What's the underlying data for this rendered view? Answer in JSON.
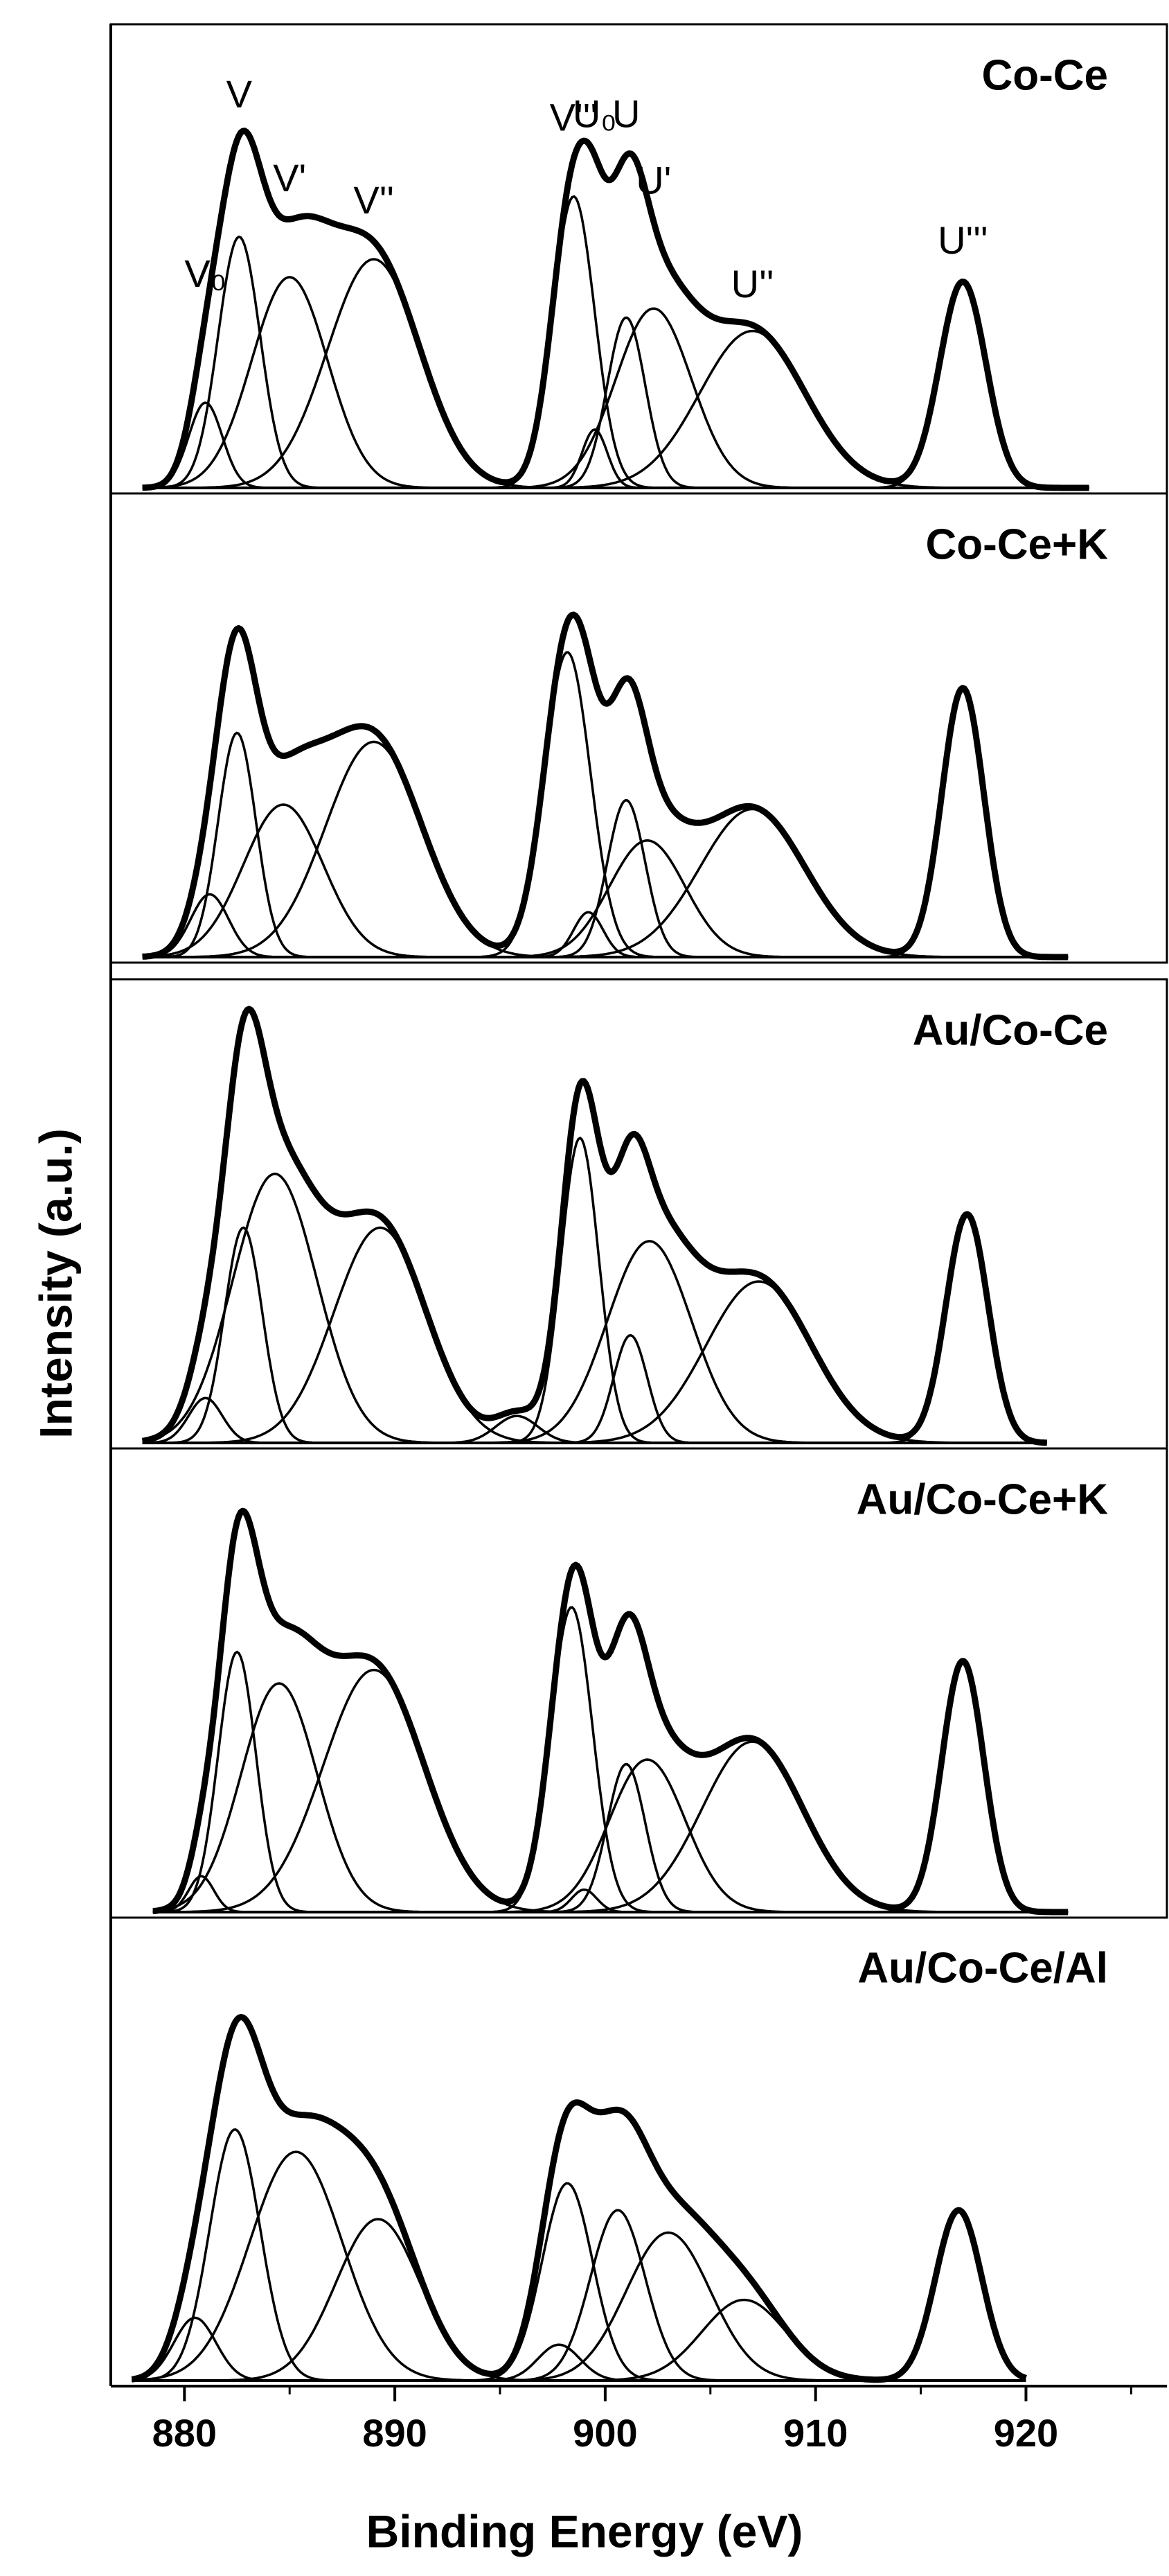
{
  "chart_data": {
    "type": "line",
    "x_label": "Binding Energy (eV)",
    "y_label": "Intensity (a.u.)",
    "xlim": [
      876.5,
      926.7
    ],
    "xticks": [
      880,
      890,
      900,
      910,
      920
    ],
    "minor_xticks": [
      885,
      895,
      905,
      915,
      925
    ],
    "ylim": [
      0,
      100
    ],
    "color": "#000000",
    "panels": [
      {
        "name": "Co-Ce",
        "xrange": [
          878,
          923
        ],
        "components": [
          {
            "label": "V₀",
            "center": 881,
            "height": 19,
            "width": 0.8
          },
          {
            "label": "V",
            "center": 882.6,
            "height": 56,
            "width": 1.0
          },
          {
            "label": "V'",
            "center": 885,
            "height": 47,
            "width": 1.8
          },
          {
            "label": "V''",
            "center": 889,
            "height": 51,
            "width": 2.2
          },
          {
            "label": "V'''",
            "center": 898.5,
            "height": 65,
            "width": 1.0
          },
          {
            "label": "U₀",
            "center": 899.5,
            "height": 13,
            "width": 0.6
          },
          {
            "label": "U",
            "center": 901,
            "height": 38,
            "width": 0.9
          },
          {
            "label": "U'",
            "center": 902.3,
            "height": 40,
            "width": 1.8
          },
          {
            "label": "U''",
            "center": 907,
            "height": 35,
            "width": 2.5
          },
          {
            "label": "U'''",
            "center": 917,
            "height": 46,
            "width": 1.1
          }
        ]
      },
      {
        "name": "Co-Ce+K",
        "xrange": [
          878,
          922
        ],
        "components": [
          {
            "center": 881.2,
            "height": 14,
            "width": 0.9
          },
          {
            "center": 882.5,
            "height": 50,
            "width": 0.9
          },
          {
            "center": 884.7,
            "height": 34,
            "width": 1.9
          },
          {
            "center": 889,
            "height": 48,
            "width": 2.3
          },
          {
            "center": 898.2,
            "height": 68,
            "width": 1.1
          },
          {
            "center": 899.2,
            "height": 10,
            "width": 0.7
          },
          {
            "center": 901,
            "height": 35,
            "width": 0.9
          },
          {
            "center": 902,
            "height": 26,
            "width": 1.8
          },
          {
            "center": 907,
            "height": 33,
            "width": 2.5
          },
          {
            "center": 917,
            "height": 60,
            "width": 1.0
          }
        ]
      },
      {
        "name": "Au/Co-Ce",
        "xrange": [
          878,
          921
        ],
        "components": [
          {
            "center": 881,
            "height": 10,
            "width": 0.8
          },
          {
            "center": 882.8,
            "height": 48,
            "width": 0.9
          },
          {
            "center": 884.3,
            "height": 60,
            "width": 2.0
          },
          {
            "center": 889.3,
            "height": 48,
            "width": 2.2
          },
          {
            "center": 898.8,
            "height": 68,
            "width": 0.9
          },
          {
            "center": 895.8,
            "height": 6,
            "width": 1.0
          },
          {
            "center": 901.2,
            "height": 24,
            "width": 0.8
          },
          {
            "center": 902.1,
            "height": 45,
            "width": 2.0
          },
          {
            "center": 907.3,
            "height": 36,
            "width": 2.5
          },
          {
            "center": 917.2,
            "height": 51,
            "width": 1.0
          }
        ]
      },
      {
        "name": "Au/Co-Ce+K",
        "xrange": [
          878.5,
          922
        ],
        "components": [
          {
            "center": 880.8,
            "height": 8,
            "width": 0.6
          },
          {
            "center": 882.5,
            "height": 58,
            "width": 0.9
          },
          {
            "center": 884.5,
            "height": 51,
            "width": 1.8
          },
          {
            "center": 889,
            "height": 54,
            "width": 2.4
          },
          {
            "center": 898.4,
            "height": 68,
            "width": 1.0
          },
          {
            "center": 899,
            "height": 5,
            "width": 0.6
          },
          {
            "center": 901,
            "height": 33,
            "width": 0.9
          },
          {
            "center": 902,
            "height": 34,
            "width": 1.8
          },
          {
            "center": 907,
            "height": 38,
            "width": 2.4
          },
          {
            "center": 917,
            "height": 56,
            "width": 1.0
          }
        ]
      },
      {
        "name": "Au/Co-Ce/Al",
        "xrange": [
          877.5,
          920
        ],
        "components": [
          {
            "center": 880.5,
            "height": 14,
            "width": 1.0
          },
          {
            "center": 882.4,
            "height": 56,
            "width": 1.2
          },
          {
            "center": 885.3,
            "height": 51,
            "width": 2.2
          },
          {
            "center": 889.2,
            "height": 36,
            "width": 2.0
          },
          {
            "center": 898.2,
            "height": 44,
            "width": 1.2
          },
          {
            "center": 897.8,
            "height": 8,
            "width": 1.0
          },
          {
            "center": 900.6,
            "height": 38,
            "width": 1.3
          },
          {
            "center": 903,
            "height": 33,
            "width": 2.0
          },
          {
            "center": 906.6,
            "height": 18,
            "width": 2.0
          },
          {
            "center": 916.8,
            "height": 38,
            "width": 1.1
          }
        ]
      }
    ]
  }
}
